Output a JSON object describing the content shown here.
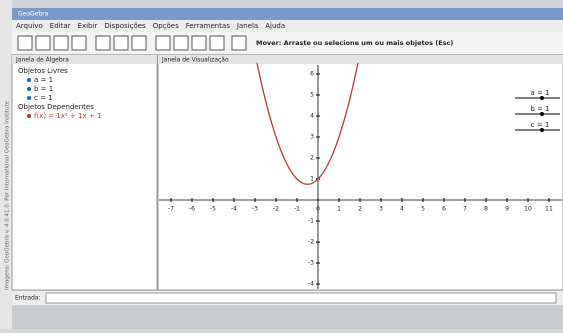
{
  "window": {
    "title": "GeoGebra",
    "menu": [
      "Arquivo",
      "Editar",
      "Exibir",
      "Disposições",
      "Opções",
      "Ferramentas",
      "Janela",
      "Ajuda"
    ],
    "tool_hint": "Mover: Arraste ou selecione um ou mais objetos (Esc)",
    "side_note": "Imagens: GeoGebra v. 4.0.41.0. Por International GeoGebra Institute"
  },
  "algebra": {
    "title": "Janela de Álgebra",
    "free_heading": "Objetos Livres",
    "free": [
      "a = 1",
      "b = 1",
      "c = 1"
    ],
    "dependent_heading": "Objetos Dependentes",
    "dependent": [
      "f(x) = 1x² + 1x + 1"
    ]
  },
  "graphics": {
    "title": "Janela de Visualização",
    "xticks": [
      -7,
      -6,
      -5,
      -4,
      -3,
      -2,
      -1,
      0,
      1,
      2,
      3,
      4,
      5,
      6,
      7,
      8,
      9,
      10,
      11
    ],
    "yticks": [
      -4,
      -3,
      -2,
      -1,
      1,
      2,
      3,
      4,
      5,
      6
    ],
    "sliders": [
      {
        "label": "a = 1",
        "value": 1
      },
      {
        "label": "b = 1",
        "value": 1
      },
      {
        "label": "c = 1",
        "value": 1
      }
    ],
    "curve_color": "#c0392b"
  },
  "input": {
    "label": "Entrada:"
  }
}
